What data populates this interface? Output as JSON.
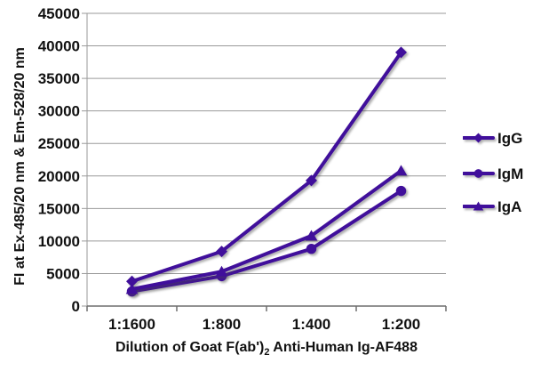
{
  "chart_data": {
    "type": "line",
    "title": "",
    "categories": [
      "1:1600",
      "1:800",
      "1:400",
      "1:200"
    ],
    "series": [
      {
        "name": "IgG",
        "marker": "diamond",
        "values": [
          3800,
          8400,
          19300,
          39000
        ]
      },
      {
        "name": "IgM",
        "marker": "circle",
        "values": [
          2250,
          4600,
          8800,
          17700
        ]
      },
      {
        "name": "IgA",
        "marker": "triangle",
        "values": [
          2600,
          5300,
          10800,
          20800
        ]
      }
    ],
    "xlabel_parts": [
      "Dilution of Goat F(ab')",
      "2",
      " Anti-Human Ig-AF488"
    ],
    "ylabel": "FI at Ex-485/20 nm & Em-528/20 nm",
    "ylim": [
      0,
      45000
    ],
    "ytick_step": 5000,
    "grid": "horizontal",
    "legend_position": "right",
    "colors": {
      "series": "#400F9B",
      "gridline": "#9a9a9a",
      "y_axis": "#9a9a9a",
      "x_axis": "#6f6f6f",
      "text": "#111111"
    }
  }
}
